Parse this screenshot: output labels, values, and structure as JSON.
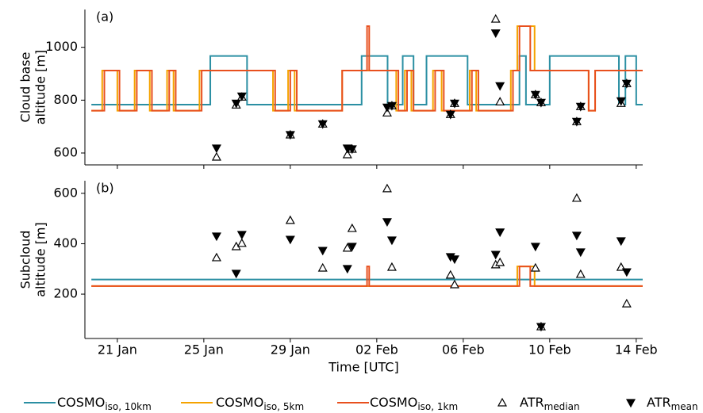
{
  "chart_data": [
    {
      "type": "line",
      "annotation": "(a)",
      "ylabel": [
        "Cloud base",
        "altitude [m]"
      ],
      "xlim": [
        19.5,
        45.3
      ],
      "ylim": [
        555,
        1143
      ],
      "yticks": [
        600,
        800,
        1000
      ],
      "series": [
        {
          "color": "#2b8fa3",
          "kind": "line",
          "x": [
            19.8,
            25.3,
            25.3,
            27.0,
            27.0,
            32.3,
            32.3,
            33.5,
            33.5,
            34.2,
            34.2,
            34.7,
            34.7,
            35.3,
            35.3,
            37.2,
            37.2,
            39.6,
            39.6,
            39.9,
            39.9,
            41.0,
            41.0,
            44.2,
            44.2,
            44.5,
            44.5,
            45.0,
            45.0,
            45.3
          ],
          "values": [
            783,
            783,
            967,
            967,
            783,
            783,
            967,
            967,
            783,
            783,
            967,
            967,
            783,
            783,
            967,
            967,
            783,
            783,
            967,
            967,
            783,
            783,
            967,
            967,
            783,
            783,
            967,
            967,
            783,
            783
          ]
        },
        {
          "color": "#f5a300",
          "kind": "line",
          "x": [
            19.8,
            20.3,
            20.3,
            21.0,
            21.0,
            21.8,
            21.8,
            22.5,
            22.5,
            23.3,
            23.3,
            23.6,
            23.6,
            24.8,
            24.8,
            28.2,
            28.2,
            28.9,
            28.9,
            29.2,
            29.2,
            31.4,
            31.4,
            33.9,
            33.9,
            34.3,
            34.3,
            34.6,
            34.6,
            35.6,
            35.6,
            36.0,
            36.0,
            37.3,
            37.3,
            37.6,
            37.6,
            39.2,
            39.2,
            39.5,
            39.5,
            40.3,
            40.3,
            42.8,
            42.8,
            43.1,
            43.1,
            45.3
          ],
          "values": [
            760,
            760,
            912,
            912,
            760,
            760,
            912,
            912,
            760,
            760,
            912,
            912,
            760,
            760,
            912,
            912,
            760,
            760,
            912,
            912,
            760,
            760,
            912,
            912,
            760,
            760,
            912,
            912,
            760,
            760,
            912,
            912,
            760,
            760,
            912,
            912,
            760,
            760,
            912,
            912,
            1080,
            1080,
            912,
            912,
            760,
            760,
            912,
            912
          ]
        },
        {
          "color": "#e8501e",
          "kind": "line",
          "x": [
            19.8,
            20.4,
            20.4,
            21.1,
            21.1,
            21.9,
            21.9,
            22.6,
            22.6,
            23.4,
            23.4,
            23.7,
            23.7,
            24.9,
            24.9,
            28.3,
            28.3,
            29.0,
            29.0,
            29.3,
            29.3,
            31.4,
            31.4,
            32.55,
            32.55,
            32.65,
            32.65,
            34.0,
            34.0,
            34.4,
            34.4,
            34.7,
            34.7,
            35.7,
            35.7,
            36.1,
            36.1,
            37.4,
            37.4,
            37.7,
            37.7,
            39.3,
            39.3,
            39.6,
            39.6,
            40.1,
            40.1,
            42.8,
            42.8,
            43.1,
            43.1,
            45.3
          ],
          "values": [
            760,
            760,
            912,
            912,
            760,
            760,
            912,
            912,
            760,
            760,
            912,
            912,
            760,
            760,
            912,
            912,
            760,
            760,
            912,
            912,
            760,
            760,
            912,
            912,
            1080,
            1080,
            912,
            912,
            760,
            760,
            912,
            912,
            760,
            760,
            912,
            912,
            760,
            760,
            912,
            912,
            760,
            760,
            912,
            912,
            1080,
            1080,
            912,
            912,
            760,
            760,
            912,
            912
          ]
        },
        {
          "color": "#000000",
          "kind": "median",
          "x": [
            25.59,
            26.5,
            26.76,
            29.0,
            30.5,
            31.64,
            31.86,
            33.48,
            33.7,
            36.41,
            36.6,
            38.5,
            38.7,
            40.34,
            40.6,
            42.25,
            42.43,
            44.3,
            44.56
          ],
          "values": [
            585,
            782,
            812,
            669,
            710,
            594,
            615,
            752,
            779,
            746,
            788,
            1107,
            794,
            821,
            791,
            719,
            776,
            788,
            863
          ]
        },
        {
          "color": "#000000",
          "kind": "mean",
          "x": [
            25.59,
            26.5,
            26.76,
            29.0,
            30.5,
            31.64,
            31.86,
            33.48,
            33.7,
            36.41,
            36.6,
            38.5,
            38.7,
            40.34,
            40.6,
            42.25,
            42.43,
            44.3,
            44.56
          ],
          "values": [
            618,
            788,
            815,
            669,
            710,
            618,
            615,
            773,
            779,
            746,
            788,
            1054,
            854,
            821,
            791,
            719,
            776,
            797,
            863
          ]
        }
      ]
    },
    {
      "type": "line",
      "annotation": "(b)",
      "ylabel": [
        "Subcloud",
        "altitude [m]"
      ],
      "xlabel": "Time [UTC]",
      "xlim": [
        19.5,
        45.3
      ],
      "ylim": [
        24,
        650
      ],
      "yticks": [
        200,
        400,
        600
      ],
      "xticks": [
        {
          "value": 21,
          "label": "21 Jan"
        },
        {
          "value": 25,
          "label": "25 Jan"
        },
        {
          "value": 29,
          "label": "29 Jan"
        },
        {
          "value": 33,
          "label": "02 Feb"
        },
        {
          "value": 37,
          "label": "06 Feb"
        },
        {
          "value": 41,
          "label": "10 Feb"
        },
        {
          "value": 45,
          "label": "14 Feb"
        }
      ],
      "series": [
        {
          "name": "COSMO_{iso, 10km}",
          "color": "#2b8fa3",
          "kind": "line",
          "x": [
            19.8,
            45.3
          ],
          "values": [
            258,
            258
          ]
        },
        {
          "name": "COSMO_{iso, 5km}",
          "color": "#f5a300",
          "kind": "line",
          "x": [
            19.8,
            39.5,
            39.5,
            40.3,
            40.3,
            45.3
          ],
          "values": [
            232,
            232,
            310,
            310,
            232,
            232
          ]
        },
        {
          "name": "COSMO_{iso, 1km}",
          "color": "#e8501e",
          "kind": "line",
          "x": [
            19.8,
            32.55,
            32.55,
            32.65,
            32.65,
            39.6,
            39.6,
            40.1,
            40.1,
            45.3
          ],
          "values": [
            232,
            232,
            310,
            310,
            232,
            232,
            310,
            310,
            232,
            232
          ]
        },
        {
          "name": "ATR_{median}",
          "color": "#000000",
          "kind": "median",
          "x": [
            25.59,
            26.5,
            26.76,
            29.0,
            30.5,
            31.64,
            31.86,
            33.48,
            33.7,
            36.41,
            36.6,
            38.5,
            38.7,
            40.34,
            40.6,
            42.25,
            42.43,
            44.3,
            44.56
          ],
          "values": [
            345,
            389,
            402,
            493,
            304,
            383,
            461,
            619,
            307,
            276,
            238,
            317,
            326,
            304,
            71,
            581,
            279,
            307,
            162
          ]
        },
        {
          "name": "ATR_{mean}",
          "color": "#000000",
          "kind": "mean",
          "x": [
            25.59,
            26.5,
            26.76,
            29.0,
            30.5,
            31.64,
            31.86,
            33.48,
            33.7,
            36.41,
            36.6,
            38.5,
            38.7,
            40.34,
            40.6,
            42.25,
            42.43,
            44.3,
            44.56
          ],
          "values": [
            430,
            282,
            436,
            417,
            373,
            301,
            389,
            487,
            414,
            348,
            339,
            357,
            446,
            389,
            71,
            433,
            367,
            411,
            288
          ]
        }
      ]
    }
  ]
}
